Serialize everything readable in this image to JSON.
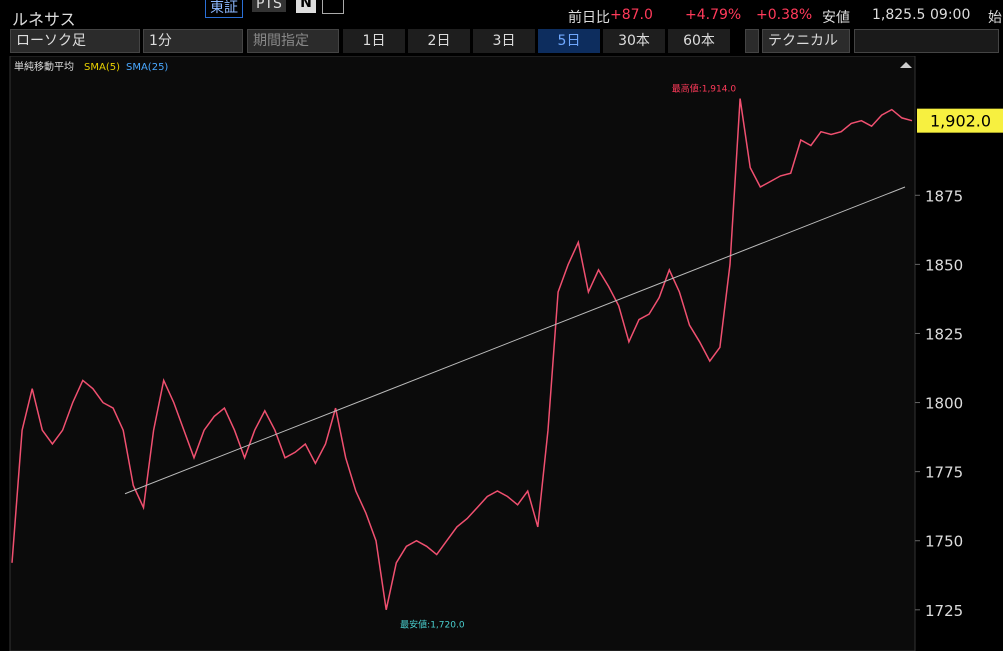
{
  "header": {
    "title": "ルネサス",
    "tabs": [
      "東証",
      "PTS"
    ],
    "quote": [
      "前日比",
      "+87.0",
      "+4.79%",
      "+0.38%",
      "安値",
      "1,825.5",
      "09:00",
      "始"
    ]
  },
  "toolbar": {
    "dropdowns": [
      "ローソク足",
      "1分",
      "期間指定"
    ],
    "ranges": [
      "1日",
      "2日",
      "3日",
      "5日",
      "30本",
      "60本"
    ],
    "selected": "5日",
    "technical": "テクニカル"
  },
  "chart_data": {
    "type": "line",
    "legend_title": "単純移動平均",
    "series": [
      {
        "color": "#f05070",
        "values": [
          1742,
          1790,
          1805,
          1790,
          1785,
          1790,
          1800,
          1808,
          1805,
          1800,
          1798,
          1790,
          1770,
          1762,
          1790,
          1808,
          1800,
          1790,
          1780,
          1790,
          1795,
          1798,
          1790,
          1780,
          1790,
          1797,
          1790,
          1780,
          1782,
          1785,
          1778,
          1785,
          1798,
          1780,
          1768,
          1760,
          1750,
          1725,
          1742,
          1748,
          1750,
          1748,
          1745,
          1750,
          1755,
          1758,
          1762,
          1766,
          1768,
          1766,
          1763,
          1768,
          1755,
          1790,
          1840,
          1850,
          1858,
          1840,
          1848,
          1842,
          1835,
          1822,
          1830,
          1832,
          1838,
          1848,
          1840,
          1828,
          1822,
          1815,
          1820,
          1850,
          1910,
          1885,
          1878,
          1880,
          1882,
          1883,
          1895,
          1893,
          1898,
          1897,
          1898,
          1901,
          1902,
          1900,
          1904,
          1906,
          1903,
          1902
        ]
      },
      {
        "name": "SMA(5)",
        "color": "#e8d000"
      },
      {
        "name": "SMA(25)",
        "color": "#4aa8ff"
      }
    ],
    "trendline": {
      "values": [
        1767,
        1878
      ]
    },
    "high": {
      "value": 1914,
      "label": "最高値:1,914.0"
    },
    "low": {
      "value": 1720,
      "label": "最安値:1,720.0"
    },
    "last": {
      "value": 1902,
      "label": "1,902.0"
    },
    "ylim": [
      1710.1,
      1925.4
    ],
    "yticks": [
      1725,
      1750,
      1775,
      1800,
      1825,
      1850,
      1875
    ]
  }
}
